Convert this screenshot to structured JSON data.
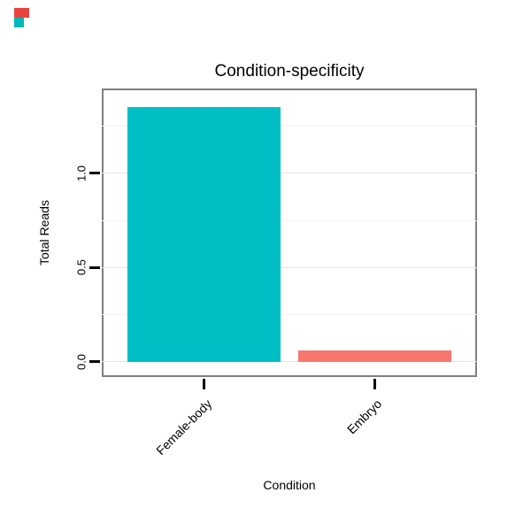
{
  "corner_marks": {
    "red": "#e8443c",
    "teal": "#00b7bd"
  },
  "chart_data": {
    "type": "bar",
    "title": "Condition-specificity",
    "xlabel": "Condition",
    "ylabel": "Total Reads",
    "categories": [
      "Female-body",
      "Embryo"
    ],
    "values": [
      1.35,
      0.06
    ],
    "bar_colors": [
      "#00BFC4",
      "#F8766D"
    ],
    "yticks": [
      0.0,
      0.5,
      1.0
    ],
    "ytick_labels": [
      "0.0",
      "0.5",
      "1.0"
    ],
    "ylim": [
      -0.08,
      1.45
    ],
    "grid": "horizontal major (#e5e5e5) at ticks and minor (#f2f2f2) at half-steps",
    "legend": "none",
    "panel": "white background, gray border, ticks and labels black, x tick labels rotated 45deg, y tick labels rotated 90deg"
  }
}
